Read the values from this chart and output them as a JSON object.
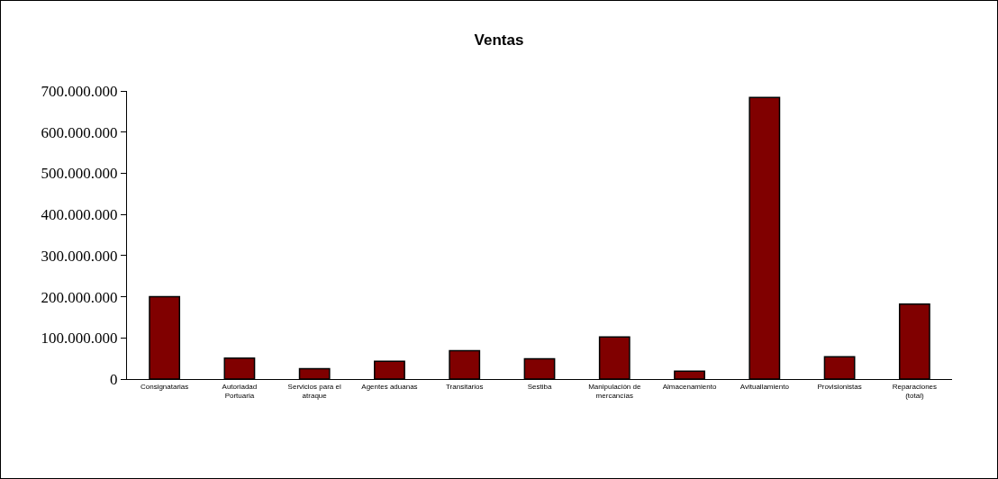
{
  "chart_data": {
    "type": "bar",
    "title": "Ventas",
    "categories": [
      "Consignatarias",
      "Autoriadad Portuaria",
      "Servicios para el atraque",
      "Agentes aduanas",
      "Transitarios",
      "Sestiba",
      "Manipulación de mercancías",
      "Almacenamiento",
      "Avituallamiento",
      "Provisionistas",
      "Reparaciones (total)"
    ],
    "values": [
      200000000,
      51000000,
      25000000,
      43000000,
      69000000,
      49000000,
      102000000,
      19000000,
      684000000,
      54000000,
      182000000
    ],
    "color": "#800000",
    "ylim": [
      0,
      700000000
    ],
    "yticks": [
      {
        "value": 0,
        "label": "0"
      },
      {
        "value": 100000000,
        "label": "100.000.000"
      },
      {
        "value": 200000000,
        "label": "200.000.000"
      },
      {
        "value": 300000000,
        "label": "300.000.000"
      },
      {
        "value": 400000000,
        "label": "400.000.000"
      },
      {
        "value": 500000000,
        "label": "500.000.000"
      },
      {
        "value": 600000000,
        "label": "600.000.000"
      },
      {
        "value": 700000000,
        "label": "700.000.000"
      }
    ],
    "grid": false
  }
}
